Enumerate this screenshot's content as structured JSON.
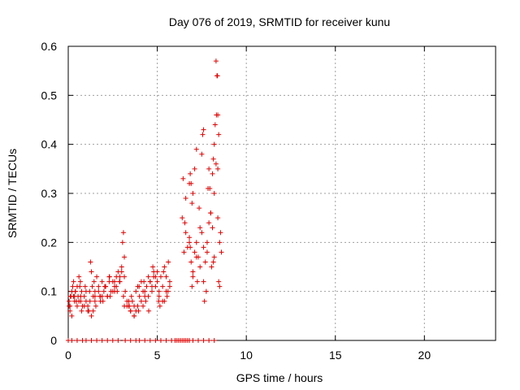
{
  "chart_data": {
    "type": "scatter",
    "title": "Day 076 of 2019, SRMTID for receiver kunu",
    "xlabel": "GPS time / hours",
    "ylabel": "SRMTID / TECUs",
    "xlim": [
      0,
      24
    ],
    "ylim": [
      0,
      0.6
    ],
    "xticks": [
      0,
      5,
      10,
      15,
      20
    ],
    "xtick_labels": [
      "0",
      "5",
      "10",
      "15",
      "20"
    ],
    "yticks": [
      0,
      0.1,
      0.2,
      0.3,
      0.4,
      0.5,
      0.6
    ],
    "ytick_labels": [
      "0",
      "0.1",
      "0.2",
      "0.3",
      "0.4",
      "0.5",
      "0.6"
    ],
    "grid": true,
    "marker": "+",
    "color": "#e00000",
    "series": [
      {
        "name": "SRMTID",
        "x": [
          0.05,
          0.1,
          0.15,
          0.2,
          0.25,
          0.3,
          0.35,
          0.4,
          0.45,
          0.5,
          0.55,
          0.6,
          0.65,
          0.7,
          0.75,
          0.8,
          0.9,
          1.0,
          1.1,
          1.2,
          1.25,
          1.3,
          1.35,
          1.4,
          1.45,
          1.5,
          1.6,
          1.7,
          1.8,
          1.9,
          2.0,
          2.1,
          2.2,
          2.3,
          2.4,
          2.5,
          2.6,
          2.7,
          2.8,
          2.9,
          3.0,
          3.05,
          3.1,
          3.15,
          3.2,
          3.3,
          3.4,
          3.5,
          3.6,
          3.7,
          3.8,
          3.9,
          4.0,
          4.1,
          4.2,
          4.3,
          4.4,
          4.5,
          4.6,
          4.7,
          4.8,
          4.9,
          5.0,
          5.1,
          5.2,
          5.3,
          5.4,
          5.5,
          5.6,
          5.7,
          6.5,
          6.6,
          6.7,
          6.8,
          6.9,
          7.0,
          7.1,
          7.2,
          7.3,
          7.4,
          7.5,
          7.6,
          7.7,
          7.8,
          7.9,
          8.0,
          8.1,
          8.2,
          8.3,
          8.4,
          8.5,
          8.55,
          8.6,
          0.1,
          0.3,
          0.5,
          0.7,
          0.9,
          1.1,
          1.3,
          1.5,
          1.7,
          1.9,
          2.1,
          2.3,
          2.5,
          2.7,
          2.9,
          3.1,
          3.3,
          3.5,
          3.7,
          3.9,
          4.1,
          4.3,
          4.5,
          4.7,
          4.9,
          5.1,
          5.3,
          5.5,
          5.7,
          6.4,
          6.8,
          7.2,
          7.6,
          8.0,
          8.4,
          0.2,
          0.6,
          1.0,
          1.4,
          1.8,
          2.2,
          2.6,
          3.0,
          3.4,
          3.8,
          4.2,
          4.6,
          5.0,
          5.4,
          6.6,
          7.0,
          7.4,
          7.8,
          8.2,
          0.05,
          0.35,
          0.75,
          1.15,
          1.55,
          1.95,
          2.35,
          2.75,
          3.15,
          3.55,
          3.95,
          4.35,
          4.75,
          5.15,
          5.55,
          6.45,
          6.85,
          7.25,
          7.65,
          8.05,
          8.45,
          0.12,
          0.4,
          0.68,
          0.95,
          1.22,
          1.5,
          1.78,
          2.05,
          2.32,
          2.6,
          2.88,
          3.15,
          3.42,
          3.7,
          3.98,
          4.25,
          4.52,
          4.8,
          5.08,
          5.35,
          5.62,
          6.55,
          6.95,
          7.35,
          7.75,
          8.15,
          8.5,
          0.0,
          0.2,
          0.5,
          0.8,
          1.0,
          1.3,
          1.6,
          1.9,
          2.2,
          2.5,
          2.8,
          3.2,
          3.5,
          3.8,
          4.0,
          4.3,
          4.6,
          4.9,
          5.2,
          5.5,
          5.8,
          6.0,
          6.1,
          6.2,
          6.3,
          6.4,
          6.5,
          6.6,
          6.7,
          6.8,
          7.0,
          7.3,
          7.6,
          7.9,
          8.2,
          8.3,
          8.35,
          8.4,
          8.45,
          8.38,
          8.32,
          8.25,
          8.2,
          8.15,
          8.1,
          7.95,
          7.9,
          7.85,
          7.6,
          7.55,
          7.5,
          7.2,
          7.1,
          7.0,
          6.95,
          6.9,
          6.85,
          6.8
        ],
        "y": [
          0.08,
          0.07,
          0.09,
          0.1,
          0.11,
          0.12,
          0.09,
          0.1,
          0.08,
          0.07,
          0.09,
          0.08,
          0.11,
          0.09,
          0.1,
          0.07,
          0.09,
          0.08,
          0.07,
          0.1,
          0.16,
          0.14,
          0.11,
          0.09,
          0.12,
          0.1,
          0.13,
          0.11,
          0.09,
          0.12,
          0.1,
          0.11,
          0.09,
          0.13,
          0.1,
          0.12,
          0.11,
          0.13,
          0.14,
          0.12,
          0.15,
          0.2,
          0.22,
          0.17,
          0.1,
          0.08,
          0.07,
          0.06,
          0.08,
          0.07,
          0.1,
          0.11,
          0.09,
          0.12,
          0.1,
          0.09,
          0.11,
          0.13,
          0.12,
          0.1,
          0.14,
          0.11,
          0.12,
          0.1,
          0.13,
          0.11,
          0.08,
          0.13,
          0.1,
          0.12,
          0.18,
          0.22,
          0.19,
          0.2,
          0.16,
          0.13,
          0.18,
          0.2,
          0.17,
          0.15,
          0.22,
          0.19,
          0.16,
          0.2,
          0.24,
          0.26,
          0.23,
          0.3,
          0.36,
          0.35,
          0.2,
          0.22,
          0.18,
          0.06,
          0.09,
          0.11,
          0.08,
          0.07,
          0.06,
          0.05,
          0.08,
          0.1,
          0.09,
          0.11,
          0.12,
          0.1,
          0.11,
          0.13,
          0.09,
          0.07,
          0.06,
          0.05,
          0.07,
          0.08,
          0.1,
          0.09,
          0.11,
          0.13,
          0.09,
          0.08,
          0.1,
          0.11,
          0.25,
          0.21,
          0.17,
          0.12,
          0.26,
          0.25,
          0.05,
          0.13,
          0.1,
          0.06,
          0.08,
          0.09,
          0.12,
          0.14,
          0.08,
          0.06,
          0.07,
          0.12,
          0.14,
          0.15,
          0.29,
          0.14,
          0.23,
          0.18,
          0.17,
          0.07,
          0.08,
          0.06,
          0.06,
          0.07,
          0.08,
          0.09,
          0.1,
          0.07,
          0.09,
          0.06,
          0.08,
          0.15,
          0.07,
          0.09,
          0.33,
          0.19,
          0.12,
          0.08,
          0.15,
          0.12,
          0.09,
          0.1,
          0.12,
          0.11,
          0.08,
          0.09,
          0.09,
          0.11,
          0.13,
          0.1,
          0.12,
          0.13,
          0.07,
          0.05,
          0.11,
          0.12,
          0.06,
          0.13,
          0.08,
          0.14,
          0.16,
          0.24,
          0.11,
          0.27,
          0.1,
          0.16,
          0.11,
          0.0,
          0.0,
          0.0,
          0.0,
          0.0,
          0.0,
          0.0,
          0.0,
          0.0,
          0.0,
          0.0,
          0.0,
          0.0,
          0.0,
          0.0,
          0.0,
          0.0,
          0.0,
          0.0,
          0.0,
          0.0,
          0.0,
          0.0,
          0.0,
          0.0,
          0.0,
          0.0,
          0.0,
          0.0,
          0.0,
          0.0,
          0.0,
          0.0,
          0.0,
          0.0,
          0.57,
          0.54,
          0.46,
          0.42,
          0.54,
          0.46,
          0.44,
          0.4,
          0.37,
          0.34,
          0.31,
          0.35,
          0.31,
          0.43,
          0.42,
          0.38,
          0.39,
          0.35,
          0.3,
          0.28,
          0.32,
          0.34,
          0.32
        ]
      }
    ]
  }
}
